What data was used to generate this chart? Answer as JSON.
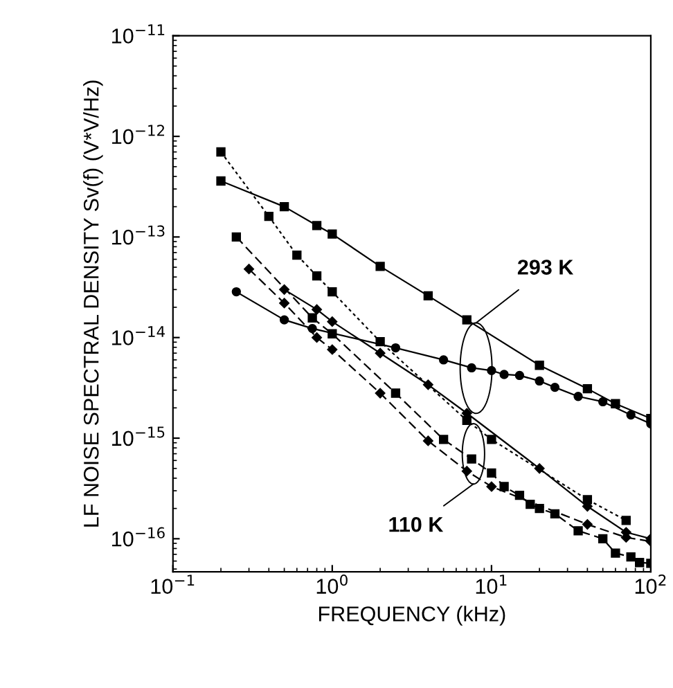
{
  "chart_data": {
    "type": "line",
    "xlabel": "FREQUENCY (kHz)",
    "ylabel": "LF NOISE SPECTRAL DENSITY Sv(f) (V*V/Hz)",
    "log": "xy",
    "xlim": [
      0.1,
      100
    ],
    "ylim": [
      4.7e-17,
      1e-11
    ],
    "xticks": [
      {
        "value": 0.1,
        "label": "10$^{−1}$"
      },
      {
        "value": 1,
        "label": "10$^{0}$"
      },
      {
        "value": 10,
        "label": "10$^{1}$"
      },
      {
        "value": 100,
        "label": "10$^{2}$"
      }
    ],
    "yticks": [
      {
        "value": 1e-16,
        "label": "10$^{−16}$"
      },
      {
        "value": 1e-15,
        "label": "10$^{−15}$"
      },
      {
        "value": 1e-14,
        "label": "10$^{−14}$"
      },
      {
        "value": 1e-13,
        "label": "10$^{−13}$"
      },
      {
        "value": 1e-12,
        "label": "10$^{−12}$"
      },
      {
        "value": 1e-11,
        "label": "10$^{−11}$"
      }
    ],
    "grid": false,
    "legend": false,
    "series": [
      {
        "color": "#000000",
        "marker": "square",
        "line_style": "solid",
        "x": [
          0.2,
          0.5,
          0.8,
          1,
          2,
          4,
          7,
          20,
          40,
          60,
          100
        ],
        "values": [
          3.6e-13,
          2e-13,
          1.3e-13,
          1.07e-13,
          5.1e-14,
          2.6e-14,
          1.5e-14,
          5.3e-15,
          3.1e-15,
          2.2e-15,
          1.57e-15
        ]
      },
      {
        "color": "#000000",
        "marker": "square",
        "line_style": "dotted",
        "x": [
          0.2,
          0.4,
          0.6,
          0.8,
          1,
          2,
          7,
          10,
          40,
          70
        ],
        "values": [
          7e-13,
          1.6e-13,
          6.6e-14,
          4.1e-14,
          2.85e-14,
          9.1e-15,
          1.5e-15,
          9.7e-16,
          2.45e-16,
          1.52e-16
        ]
      },
      {
        "color": "#000000",
        "marker": "circle",
        "line_style": "solid",
        "x": [
          0.25,
          0.5,
          0.75,
          2.5,
          5,
          7.5,
          10,
          12,
          15,
          20,
          25,
          35,
          50,
          75,
          100
        ],
        "values": [
          2.85e-14,
          1.5e-14,
          1.23e-14,
          7.9e-15,
          6e-15,
          5e-15,
          4.7e-15,
          4.3e-15,
          4.2e-15,
          3.7e-15,
          3.2e-15,
          2.6e-15,
          2.3e-15,
          1.7e-15,
          1.39e-15
        ]
      },
      {
        "color": "#000000",
        "marker": "square",
        "line_style": "dashed",
        "x": [
          0.25,
          0.75,
          1,
          2.5,
          5,
          7.5,
          10,
          12,
          15,
          17.5,
          20,
          25,
          35,
          50,
          60,
          75,
          85,
          100
        ],
        "values": [
          1e-13,
          1.57e-14,
          1.09e-14,
          2.8e-15,
          9.7e-16,
          6.2e-16,
          4.5e-16,
          3.3e-16,
          2.7e-16,
          2.2e-16,
          2e-16,
          1.77e-16,
          1.2e-16,
          1e-16,
          7.2e-17,
          6.6e-17,
          5.8e-17,
          5.7e-17
        ]
      },
      {
        "color": "#000000",
        "marker": "diamond",
        "line_style": "dashed",
        "x": [
          0.3,
          0.5,
          0.8,
          1,
          2,
          4,
          7,
          10,
          40,
          70,
          100
        ],
        "values": [
          4.8e-14,
          2.2e-14,
          1e-14,
          7.6e-15,
          2.8e-15,
          9.4e-16,
          4.7e-16,
          3.3e-16,
          1.39e-16,
          1.03e-16,
          9.4e-17
        ]
      },
      {
        "color": "#000000",
        "marker": "diamond",
        "line_style": "solid",
        "x": [
          0.5,
          0.8,
          1,
          2,
          4,
          7,
          20,
          40,
          70,
          100
        ],
        "values": [
          3e-14,
          1.9e-14,
          1.44e-14,
          7e-15,
          3.4e-15,
          1.77e-15,
          5e-16,
          2.1e-16,
          1.16e-16,
          1e-16
        ]
      }
    ],
    "annotations": [
      {
        "text": "293 K",
        "x": 8,
        "y": 1.4e-14
      },
      {
        "text": "110 K",
        "x": 7.7,
        "y": 3.5e-16
      }
    ]
  }
}
